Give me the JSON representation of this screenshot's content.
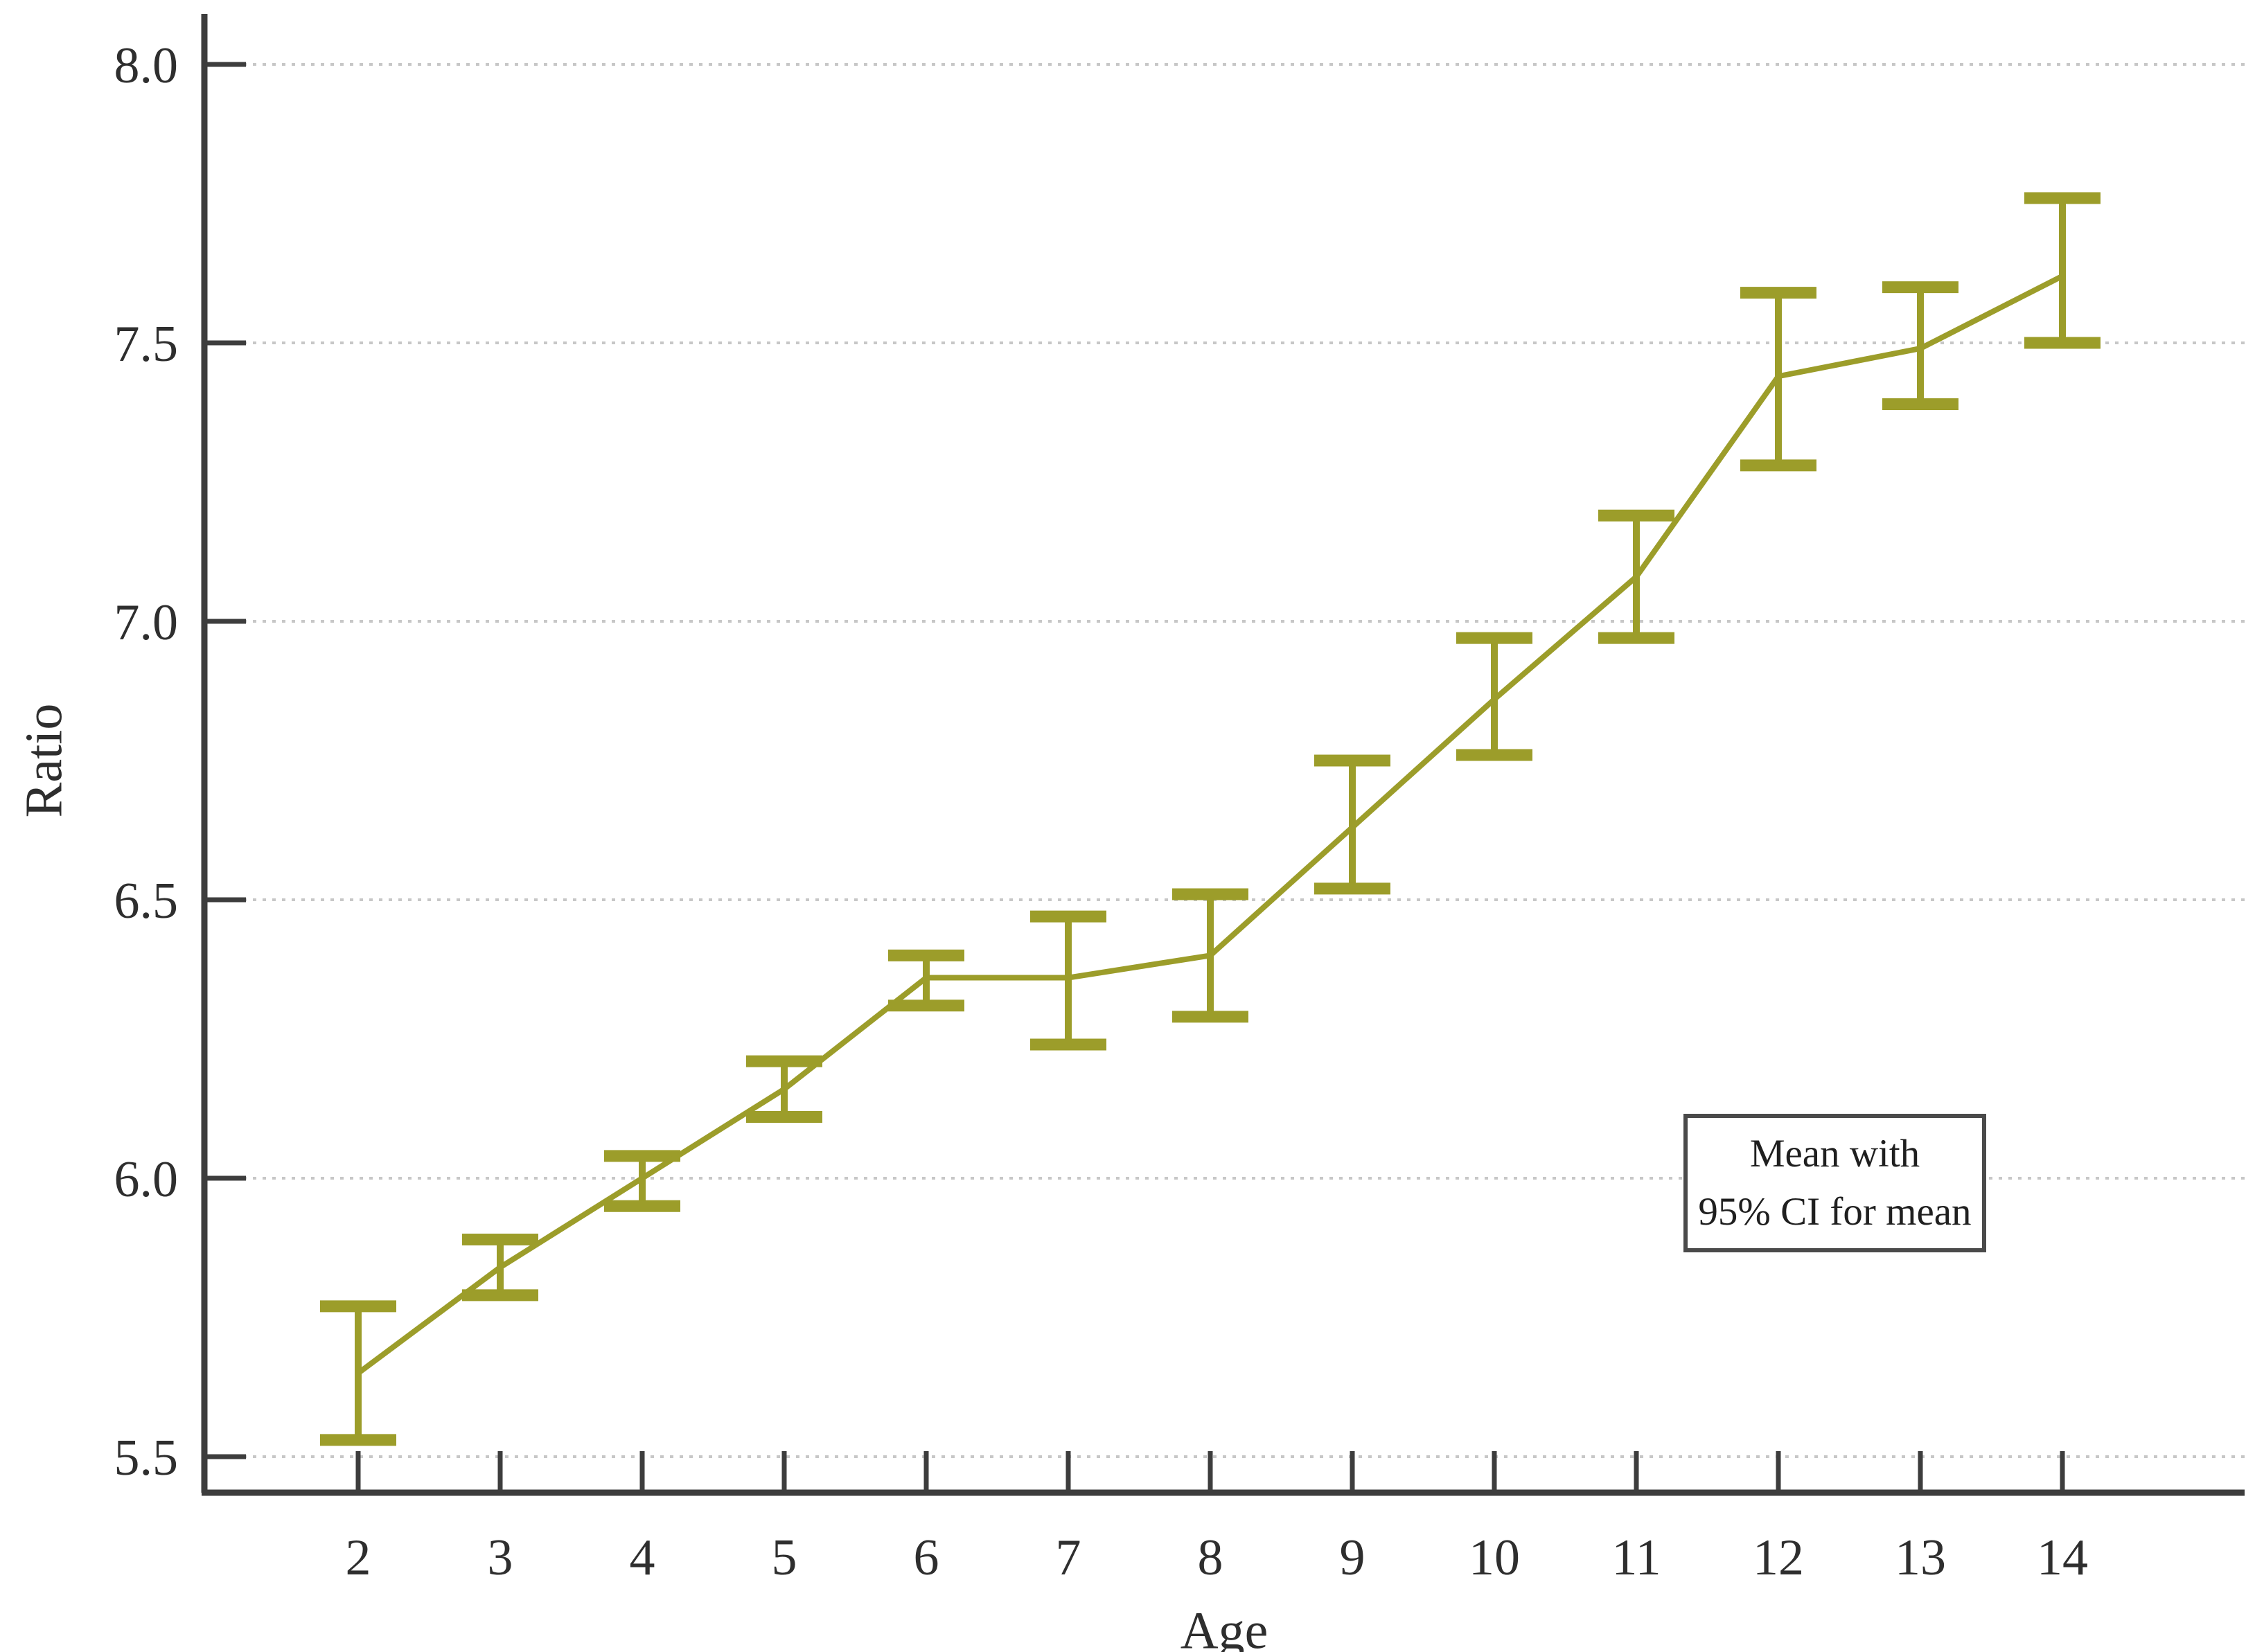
{
  "chart_data": {
    "type": "line",
    "title": "",
    "xlabel": "Age",
    "ylabel": "Ratio",
    "categories": [
      2,
      3,
      4,
      5,
      6,
      7,
      8,
      9,
      10,
      11,
      12,
      13,
      14
    ],
    "series": [
      {
        "name": "Mean",
        "values": [
          5.65,
          5.84,
          6.0,
          6.16,
          6.36,
          6.36,
          6.4,
          6.63,
          6.86,
          7.08,
          7.44,
          7.49,
          7.62
        ]
      },
      {
        "name": "95% CI lower",
        "values": [
          5.53,
          5.79,
          5.95,
          6.11,
          6.31,
          6.24,
          6.29,
          6.52,
          6.76,
          6.97,
          7.28,
          7.39,
          7.5
        ]
      },
      {
        "name": "95% CI upper",
        "values": [
          5.77,
          5.89,
          6.04,
          6.21,
          6.4,
          6.47,
          6.51,
          6.75,
          6.97,
          7.19,
          7.59,
          7.6,
          7.76
        ]
      }
    ],
    "error_bars": true,
    "y_ticks": [
      "5.5",
      "6.0",
      "6.5",
      "7.0",
      "7.5",
      "8.0"
    ],
    "y_tick_values": [
      5.5,
      6.0,
      6.5,
      7.0,
      7.5,
      8.0
    ],
    "ylim": [
      5.42,
      8.09
    ],
    "grid": "horizontal-dotted",
    "legend": {
      "line1": "Mean with",
      "line2": "95% CI for mean"
    },
    "legend_position": "right-middle",
    "colors": {
      "series": "#9c9d2a",
      "axis": "#3d3d3d",
      "tick_label": "#2e2e2e",
      "grid": "#c7c7c7",
      "legend_border": "#4a4a4a",
      "legend_text": "#1f1f1f",
      "background": "#ffffff"
    }
  }
}
